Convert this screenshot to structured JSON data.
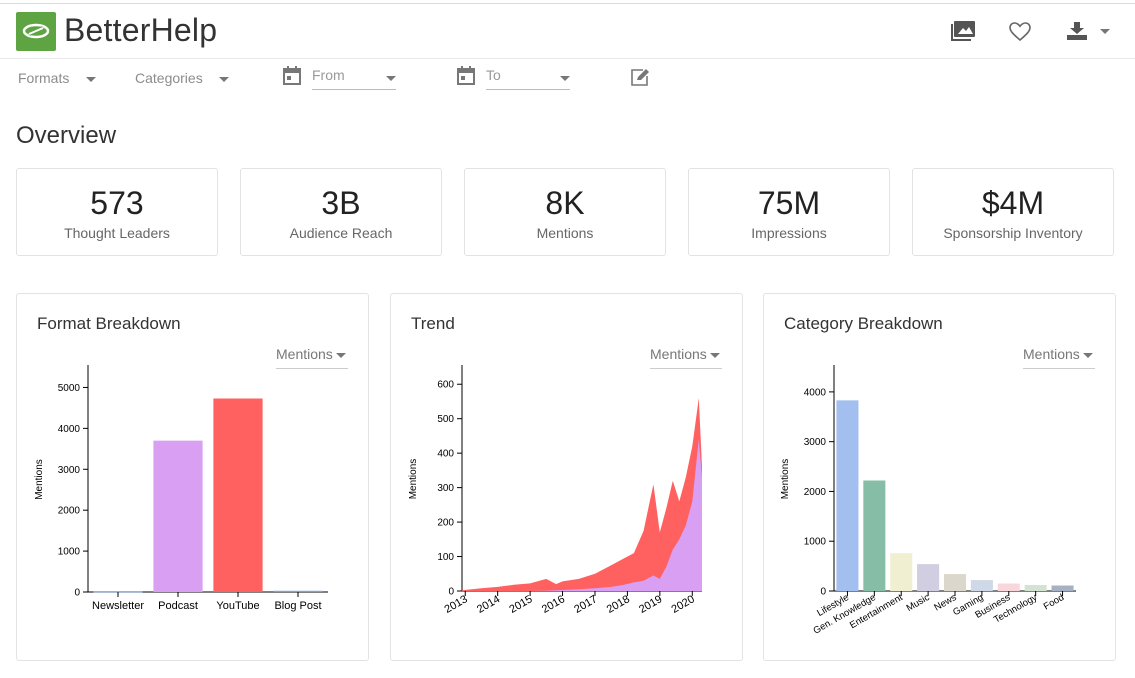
{
  "app": {
    "brand": "BetterHelp"
  },
  "header_icons": [
    "gallery-icon",
    "heart-icon",
    "download-icon"
  ],
  "filters": {
    "formats_label": "Formats",
    "categories_label": "Categories",
    "from_placeholder": "From",
    "to_placeholder": "To"
  },
  "overview": {
    "title": "Overview",
    "stats": [
      {
        "value": "573",
        "label": "Thought Leaders"
      },
      {
        "value": "3B",
        "label": "Audience Reach"
      },
      {
        "value": "8K",
        "label": "Mentions"
      },
      {
        "value": "75M",
        "label": "Impressions"
      },
      {
        "value": "$4M",
        "label": "Sponsorship Inventory"
      }
    ]
  },
  "panels": [
    {
      "title": "Format Breakdown",
      "metric": "Mentions"
    },
    {
      "title": "Trend",
      "metric": "Mentions"
    },
    {
      "title": "Category Breakdown",
      "metric": "Mentions"
    }
  ],
  "colors": {
    "brand": "#5fa442",
    "podcast": "#d99ff2",
    "youtube": "#ff6161"
  },
  "chart_data": [
    {
      "type": "bar",
      "title": "Format Breakdown",
      "ylabel": "Mentions",
      "ylim": [
        0,
        5500
      ],
      "yticks": [
        0,
        1000,
        2000,
        3000,
        4000,
        5000
      ],
      "categories": [
        "Newsletter",
        "Podcast",
        "YouTube",
        "Blog Post"
      ],
      "values": [
        20,
        3700,
        4730,
        30
      ],
      "colors": [
        "#7aa3e5",
        "#d99ff2",
        "#ff6161",
        "#7aa3e5"
      ]
    },
    {
      "type": "area",
      "title": "Trend",
      "ylabel": "Mentions",
      "ylim": [
        0,
        650
      ],
      "yticks": [
        0,
        100,
        200,
        300,
        400,
        500,
        600
      ],
      "xticks": [
        "2013",
        "2014",
        "2015",
        "2016",
        "2017",
        "2018",
        "2019",
        "2020"
      ],
      "x": [
        2012.9,
        2013.5,
        2014.0,
        2014.5,
        2015.0,
        2015.5,
        2015.8,
        2016.0,
        2016.5,
        2017.0,
        2017.5,
        2017.9,
        2018.2,
        2018.5,
        2018.8,
        2019.0,
        2019.2,
        2019.4,
        2019.6,
        2019.8,
        2020.0,
        2020.2,
        2020.3
      ],
      "series": [
        {
          "name": "YouTube",
          "color": "#ff6161",
          "values": [
            2,
            8,
            12,
            18,
            22,
            35,
            20,
            28,
            35,
            50,
            75,
            95,
            110,
            175,
            310,
            170,
            240,
            320,
            260,
            330,
            420,
            560,
            360
          ]
        },
        {
          "name": "Podcast",
          "color": "#d99ff2",
          "values": [
            0,
            0,
            0,
            0,
            0,
            1,
            2,
            3,
            5,
            8,
            12,
            18,
            25,
            30,
            45,
            35,
            70,
            120,
            150,
            190,
            260,
            440,
            330
          ]
        }
      ]
    },
    {
      "type": "bar",
      "title": "Category Breakdown",
      "ylabel": "Mentions",
      "ylim": [
        0,
        4500
      ],
      "yticks": [
        0,
        1000,
        2000,
        3000,
        4000
      ],
      "categories": [
        "Lifestyle",
        "Gen. Knowledge",
        "Entertainment",
        "Music",
        "News",
        "Gaming",
        "Business",
        "Technology",
        "Food"
      ],
      "values": [
        3830,
        2220,
        760,
        540,
        340,
        220,
        150,
        120,
        110
      ],
      "colors": [
        "#a2bff0",
        "#86bda6",
        "#f0efd2",
        "#d0cee0",
        "#dcd7cc",
        "#cfd8e6",
        "#f9d6dc",
        "#d3e3d3",
        "#a6b1c6"
      ]
    }
  ]
}
